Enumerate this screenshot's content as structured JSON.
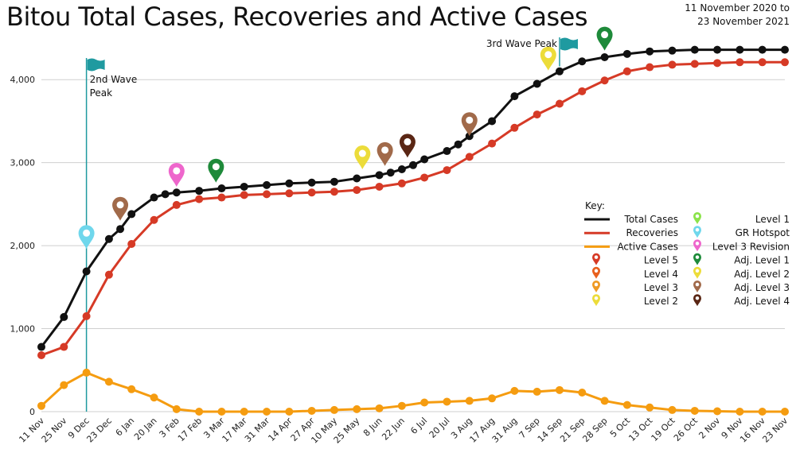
{
  "title": "Bitou Total Cases, Recoveries and Active Cases",
  "date_range": [
    "11 November 2020 to",
    "23 November 2021"
  ],
  "colors": {
    "total": "#111111",
    "recoveries": "#d63a26",
    "active": "#f59c10",
    "grid": "#cfcfcf",
    "flag": "#1f9aa0"
  },
  "chart_data": {
    "type": "line",
    "categories": [
      "11 Nov",
      "25 Nov",
      "9 Dec",
      "23 Dec",
      "6 Jan",
      "20 Jan",
      "3 Feb",
      "17 Feb",
      "3 Mar",
      "17 Mar",
      "31 Mar",
      "14 Apr",
      "27 Apr",
      "10 May",
      "25 May",
      "8 Jun",
      "22 Jun",
      "6 Jul",
      "20 Jul",
      "3 Aug",
      "17 Aug",
      "31 Aug",
      "7 Sep",
      "14 Sep",
      "21 Sep",
      "28 Sep",
      "5 Oct",
      "13 Oct",
      "19 Oct",
      "26 Oct",
      "2 Nov",
      "9 Nov",
      "16 Nov",
      "23 Nov"
    ],
    "x_index": [
      0,
      2,
      4,
      6,
      8,
      10,
      12,
      14,
      16,
      18,
      20,
      22,
      24,
      26,
      28,
      30,
      32,
      34,
      36,
      38,
      40,
      42,
      44,
      46,
      48,
      50,
      52,
      54,
      56,
      58,
      60,
      62,
      64,
      66
    ],
    "series": [
      {
        "name": "Total Cases",
        "color": "#111111",
        "x": [
          0,
          2,
          4,
          6,
          7,
          8,
          10,
          11,
          12,
          14,
          16,
          18,
          20,
          22,
          24,
          26,
          28,
          30,
          31,
          32,
          33,
          34,
          36,
          37,
          38,
          40,
          42,
          44,
          46,
          48,
          50,
          52,
          54,
          56,
          58,
          60,
          62,
          64,
          66
        ],
        "values": [
          780,
          1140,
          1690,
          2080,
          2200,
          2380,
          2580,
          2620,
          2640,
          2660,
          2690,
          2710,
          2730,
          2750,
          2760,
          2770,
          2810,
          2850,
          2880,
          2920,
          2970,
          3040,
          3140,
          3220,
          3320,
          3500,
          3800,
          3950,
          4100,
          4220,
          4270,
          4310,
          4340,
          4350,
          4360,
          4360,
          4360,
          4360,
          4360
        ]
      },
      {
        "name": "Recoveries",
        "color": "#d63a26",
        "x": [
          0,
          2,
          4,
          6,
          8,
          10,
          12,
          14,
          16,
          18,
          20,
          22,
          24,
          26,
          28,
          30,
          32,
          34,
          36,
          38,
          40,
          42,
          44,
          46,
          48,
          50,
          52,
          54,
          56,
          58,
          60,
          62,
          64,
          66
        ],
        "values": [
          680,
          780,
          1150,
          1650,
          2020,
          2310,
          2490,
          2560,
          2580,
          2610,
          2620,
          2630,
          2640,
          2650,
          2670,
          2710,
          2750,
          2820,
          2910,
          3070,
          3230,
          3420,
          3580,
          3710,
          3860,
          3990,
          4100,
          4150,
          4180,
          4190,
          4200,
          4210,
          4210,
          4210
        ]
      },
      {
        "name": "Active Cases",
        "color": "#f59c10",
        "x": [
          0,
          2,
          4,
          6,
          8,
          10,
          12,
          14,
          16,
          18,
          20,
          22,
          24,
          26,
          28,
          30,
          32,
          34,
          36,
          38,
          40,
          42,
          44,
          46,
          48,
          50,
          52,
          54,
          56,
          58,
          60,
          62,
          64,
          66
        ],
        "values": [
          70,
          320,
          470,
          360,
          270,
          170,
          30,
          0,
          0,
          0,
          0,
          0,
          10,
          20,
          30,
          40,
          70,
          110,
          120,
          130,
          160,
          250,
          240,
          260,
          230,
          130,
          80,
          50,
          20,
          10,
          5,
          0,
          0,
          0
        ]
      }
    ],
    "ylim": [
      0,
      4500
    ],
    "yticks": [
      0,
      1000,
      2000,
      3000,
      4000
    ],
    "ytick_labels": [
      "0",
      "1,000",
      "2,000",
      "3,000",
      "4,000"
    ],
    "grid": true,
    "annotations": [
      {
        "text_lines": [
          "2nd Wave",
          "Peak"
        ],
        "x": 4
      },
      {
        "text_lines": [
          "3rd Wave Peak"
        ],
        "x": 46
      }
    ],
    "markers": [
      {
        "type": "GR Hotspot",
        "color": "#6fd7ec",
        "x": 4.0,
        "y": 1960
      },
      {
        "type": "Adj. Level 3",
        "color": "#a16a4a",
        "x": 7.0,
        "y": 2300
      },
      {
        "type": "Level 3 Revision",
        "color": "#ee66cc",
        "x": 12.0,
        "y": 2710
      },
      {
        "type": "Adj. Level 1",
        "color": "#1e8a3a",
        "x": 15.5,
        "y": 2760
      },
      {
        "type": "Adj. Level 2",
        "color": "#ecdc3a",
        "x": 28.5,
        "y": 2920
      },
      {
        "type": "Adj. Level 3",
        "color": "#a16a4a",
        "x": 30.5,
        "y": 2960
      },
      {
        "type": "Adj. Level 4",
        "color": "#5a2614",
        "x": 32.5,
        "y": 3060
      },
      {
        "type": "Adj. Level 3",
        "color": "#a16a4a",
        "x": 38.0,
        "y": 3320
      },
      {
        "type": "Adj. Level 2",
        "color": "#ecdc3a",
        "x": 45.0,
        "y": 4110
      },
      {
        "type": "Adj. Level 1",
        "color": "#1e8a3a",
        "x": 50.0,
        "y": 4350
      }
    ]
  },
  "key": {
    "title": "Key:",
    "left": [
      {
        "label": "Total Cases",
        "kind": "line",
        "color": "#111111"
      },
      {
        "label": "Recoveries",
        "kind": "line",
        "color": "#d63a26"
      },
      {
        "label": "Active Cases",
        "kind": "line",
        "color": "#f59c10"
      },
      {
        "label": "Level 5",
        "kind": "pin",
        "color": "#d63a26"
      },
      {
        "label": "Level 4",
        "kind": "pin",
        "color": "#e8601e"
      },
      {
        "label": "Level 3",
        "kind": "pin",
        "color": "#ef9a24"
      },
      {
        "label": "Level 2",
        "kind": "pin",
        "color": "#ecdc3a"
      }
    ],
    "right": [
      {
        "label": "Level 1",
        "kind": "pin",
        "color": "#8be34a"
      },
      {
        "label": "GR Hotspot",
        "kind": "pin",
        "color": "#6fd7ec"
      },
      {
        "label": "Level 3 Revision",
        "kind": "pin",
        "color": "#ee66cc"
      },
      {
        "label": "Adj. Level 1",
        "kind": "pin",
        "color": "#1e8a3a"
      },
      {
        "label": "Adj. Level 2",
        "kind": "pin",
        "color": "#ecdc3a"
      },
      {
        "label": "Adj. Level 3",
        "kind": "pin",
        "color": "#a16a4a"
      },
      {
        "label": "Adj. Level 4",
        "kind": "pin",
        "color": "#5a2614"
      }
    ]
  }
}
